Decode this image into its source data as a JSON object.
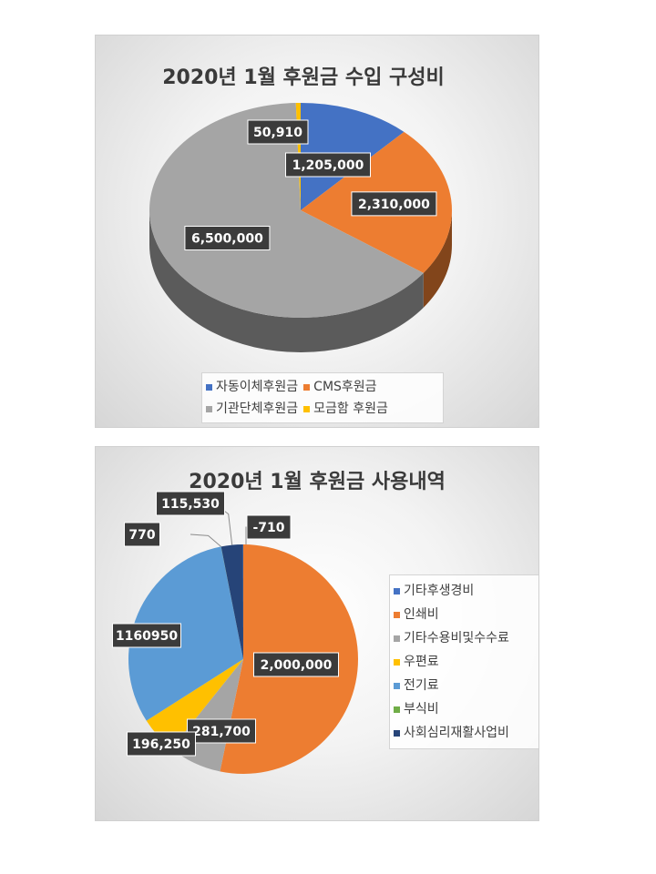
{
  "chart_data": [
    {
      "type": "pie",
      "title": "2020년 1월 후원금 수입 구성비",
      "categories": [
        "자동이체후원금",
        "CMS후원금",
        "기관단체후원금",
        "모금함 후원금"
      ],
      "values": [
        1205000,
        2310000,
        6500000,
        50910
      ],
      "data_labels": [
        "1,205,000",
        "2,310,000",
        "6,500,000",
        "50,910"
      ],
      "colors": [
        "#4472C4",
        "#ED7D31",
        "#A5A5A5",
        "#FFC000"
      ],
      "style": "3d",
      "legend_position": "bottom"
    },
    {
      "type": "pie",
      "title": "2020년 1월 후원금 사용내역",
      "categories": [
        "기타후생경비",
        "인쇄비",
        "기타수용비및수수료",
        "우편료",
        "전기료",
        "부식비",
        "사회심리재활사업비"
      ],
      "values": [
        -710,
        2000000,
        281700,
        196250,
        1160950,
        770,
        115530
      ],
      "data_labels": [
        "-710",
        "2,000,000",
        "281,700",
        "196,250",
        "1160950",
        "770",
        "115,530"
      ],
      "colors": [
        "#4472C4",
        "#ED7D31",
        "#A5A5A5",
        "#FFC000",
        "#5B9BD5",
        "#70AD47",
        "#264478"
      ],
      "legend_position": "right"
    }
  ]
}
